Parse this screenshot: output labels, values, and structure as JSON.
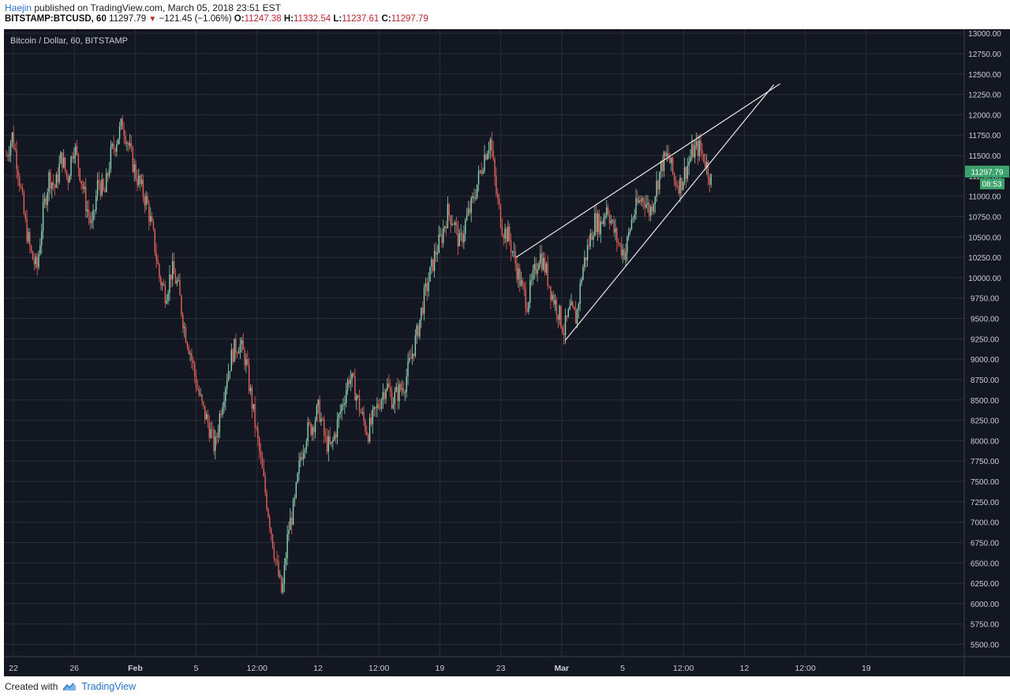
{
  "header": {
    "author": "Haejin",
    "published_text": "published on TradingView.com, March 05, 2018 23:51 EST",
    "symbol": "BITSTAMP:BTCUSD, 60",
    "last": "11297.79",
    "change": "−121.45 (−1.06%)",
    "o_label": "O:",
    "o": "11247.38",
    "h_label": "H:",
    "h": "11332.54",
    "l_label": "L:",
    "l": "11237.61",
    "c_label": "C:",
    "c": "11297.79"
  },
  "footer": {
    "created_with": "Created with",
    "brand": "TradingView"
  },
  "colors": {
    "background": "#131722",
    "grid": "#2a2e39",
    "up": "#8fd3b3",
    "down": "#e7625a",
    "neutral": "#d9d9d9",
    "trendline": "#e8e8e8",
    "price_tag": "#3aa26a",
    "header_negative": "#c0262c",
    "link": "#2a73c9"
  },
  "chart_data": {
    "type": "candlestick",
    "title": "Bitcoin / Dollar, 60, BITSTAMP",
    "ylim": [
      5350,
      13050
    ],
    "y_ticks": [
      "13000.00",
      "12750.00",
      "12500.00",
      "12250.00",
      "12000.00",
      "11750.00",
      "11500.00",
      "11250.00",
      "11000.00",
      "10750.00",
      "10500.00",
      "10250.00",
      "10000.00",
      "9750.00",
      "9500.00",
      "9250.00",
      "9000.00",
      "8750.00",
      "8500.00",
      "8250.00",
      "8000.00",
      "7750.00",
      "7500.00",
      "7250.00",
      "7000.00",
      "6750.00",
      "6500.00",
      "6250.00",
      "6000.00",
      "5750.00",
      "5500.00"
    ],
    "x_ticks": [
      "22",
      "26",
      "Feb",
      "5",
      "12:00",
      "12",
      "12:00",
      "19",
      "23",
      "Mar",
      "5",
      "12:00",
      "12",
      "12:00",
      "19"
    ],
    "x_tick_bold": [
      false,
      false,
      true,
      false,
      false,
      false,
      false,
      false,
      false,
      true,
      false,
      false,
      false,
      false,
      false
    ],
    "price_path": [
      [
        0,
        11500
      ],
      [
        1,
        11750
      ],
      [
        2,
        11300
      ],
      [
        3,
        10700
      ],
      [
        4,
        10300
      ],
      [
        5,
        10100
      ],
      [
        6,
        10800
      ],
      [
        7,
        11250
      ],
      [
        8,
        11100
      ],
      [
        9,
        11500
      ],
      [
        10,
        11200
      ],
      [
        11,
        11650
      ],
      [
        12,
        11300
      ],
      [
        13,
        10900
      ],
      [
        14,
        10600
      ],
      [
        15,
        11200
      ],
      [
        16,
        11000
      ],
      [
        17,
        11500
      ],
      [
        18,
        11700
      ],
      [
        19,
        11900
      ],
      [
        20,
        11600
      ],
      [
        21,
        11300
      ],
      [
        22,
        11100
      ],
      [
        23,
        10900
      ],
      [
        24,
        10500
      ],
      [
        25,
        10000
      ],
      [
        26,
        9800
      ],
      [
        27,
        10100
      ],
      [
        28,
        9900
      ],
      [
        29,
        9400
      ],
      [
        30,
        9100
      ],
      [
        31,
        8700
      ],
      [
        32,
        8400
      ],
      [
        33,
        8200
      ],
      [
        34,
        7900
      ],
      [
        35,
        8400
      ],
      [
        36,
        8800
      ],
      [
        37,
        9100
      ],
      [
        38,
        9200
      ],
      [
        39,
        9000
      ],
      [
        40,
        8500
      ],
      [
        41,
        8000
      ],
      [
        42,
        7500
      ],
      [
        43,
        7000
      ],
      [
        44,
        6500
      ],
      [
        45,
        6100
      ],
      [
        46,
        6900
      ],
      [
        47,
        7200
      ],
      [
        48,
        7800
      ],
      [
        49,
        8100
      ],
      [
        50,
        8200
      ],
      [
        51,
        8400
      ],
      [
        52,
        8000
      ],
      [
        53,
        7900
      ],
      [
        54,
        8200
      ],
      [
        55,
        8500
      ],
      [
        56,
        8800
      ],
      [
        57,
        8600
      ],
      [
        58,
        8300
      ],
      [
        59,
        8100
      ],
      [
        60,
        8300
      ],
      [
        61,
        8500
      ],
      [
        62,
        8700
      ],
      [
        63,
        8500
      ],
      [
        64,
        8600
      ],
      [
        65,
        8700
      ],
      [
        66,
        9000
      ],
      [
        67,
        9300
      ],
      [
        68,
        9700
      ],
      [
        69,
        10000
      ],
      [
        70,
        10300
      ],
      [
        71,
        10500
      ],
      [
        72,
        10800
      ],
      [
        73,
        10700
      ],
      [
        74,
        10400
      ],
      [
        75,
        10700
      ],
      [
        76,
        10900
      ],
      [
        77,
        11200
      ],
      [
        78,
        11500
      ],
      [
        79,
        11700
      ],
      [
        80,
        11000
      ],
      [
        81,
        10600
      ],
      [
        82,
        10500
      ],
      [
        83,
        10200
      ],
      [
        84,
        9900
      ],
      [
        85,
        9700
      ],
      [
        86,
        10000
      ],
      [
        87,
        10300
      ],
      [
        88,
        10100
      ],
      [
        89,
        9800
      ],
      [
        90,
        9600
      ],
      [
        91,
        9350
      ],
      [
        92,
        9600
      ],
      [
        93,
        9500
      ],
      [
        94,
        10100
      ],
      [
        95,
        10400
      ],
      [
        96,
        10700
      ],
      [
        97,
        10650
      ],
      [
        98,
        10900
      ],
      [
        99,
        10600
      ],
      [
        100,
        10400
      ],
      [
        101,
        10300
      ],
      [
        102,
        10700
      ],
      [
        103,
        10900
      ],
      [
        104,
        11000
      ],
      [
        105,
        10800
      ],
      [
        106,
        11100
      ],
      [
        107,
        11400
      ],
      [
        108,
        11500
      ],
      [
        109,
        11200
      ],
      [
        110,
        11150
      ],
      [
        111,
        11350
      ],
      [
        112,
        11550
      ],
      [
        113,
        11600
      ],
      [
        114,
        11450
      ],
      [
        115,
        11200
      ]
    ],
    "price_path_note": "",
    "trendlines": [
      {
        "from": [
          83,
          10250
        ],
        "to": [
          126,
          12380
        ]
      },
      {
        "from": [
          91,
          9230
        ],
        "to": [
          125,
          12370
        ]
      }
    ],
    "last_price_tag": "11297.79",
    "countdown_tag": "08:53",
    "grid": true
  }
}
